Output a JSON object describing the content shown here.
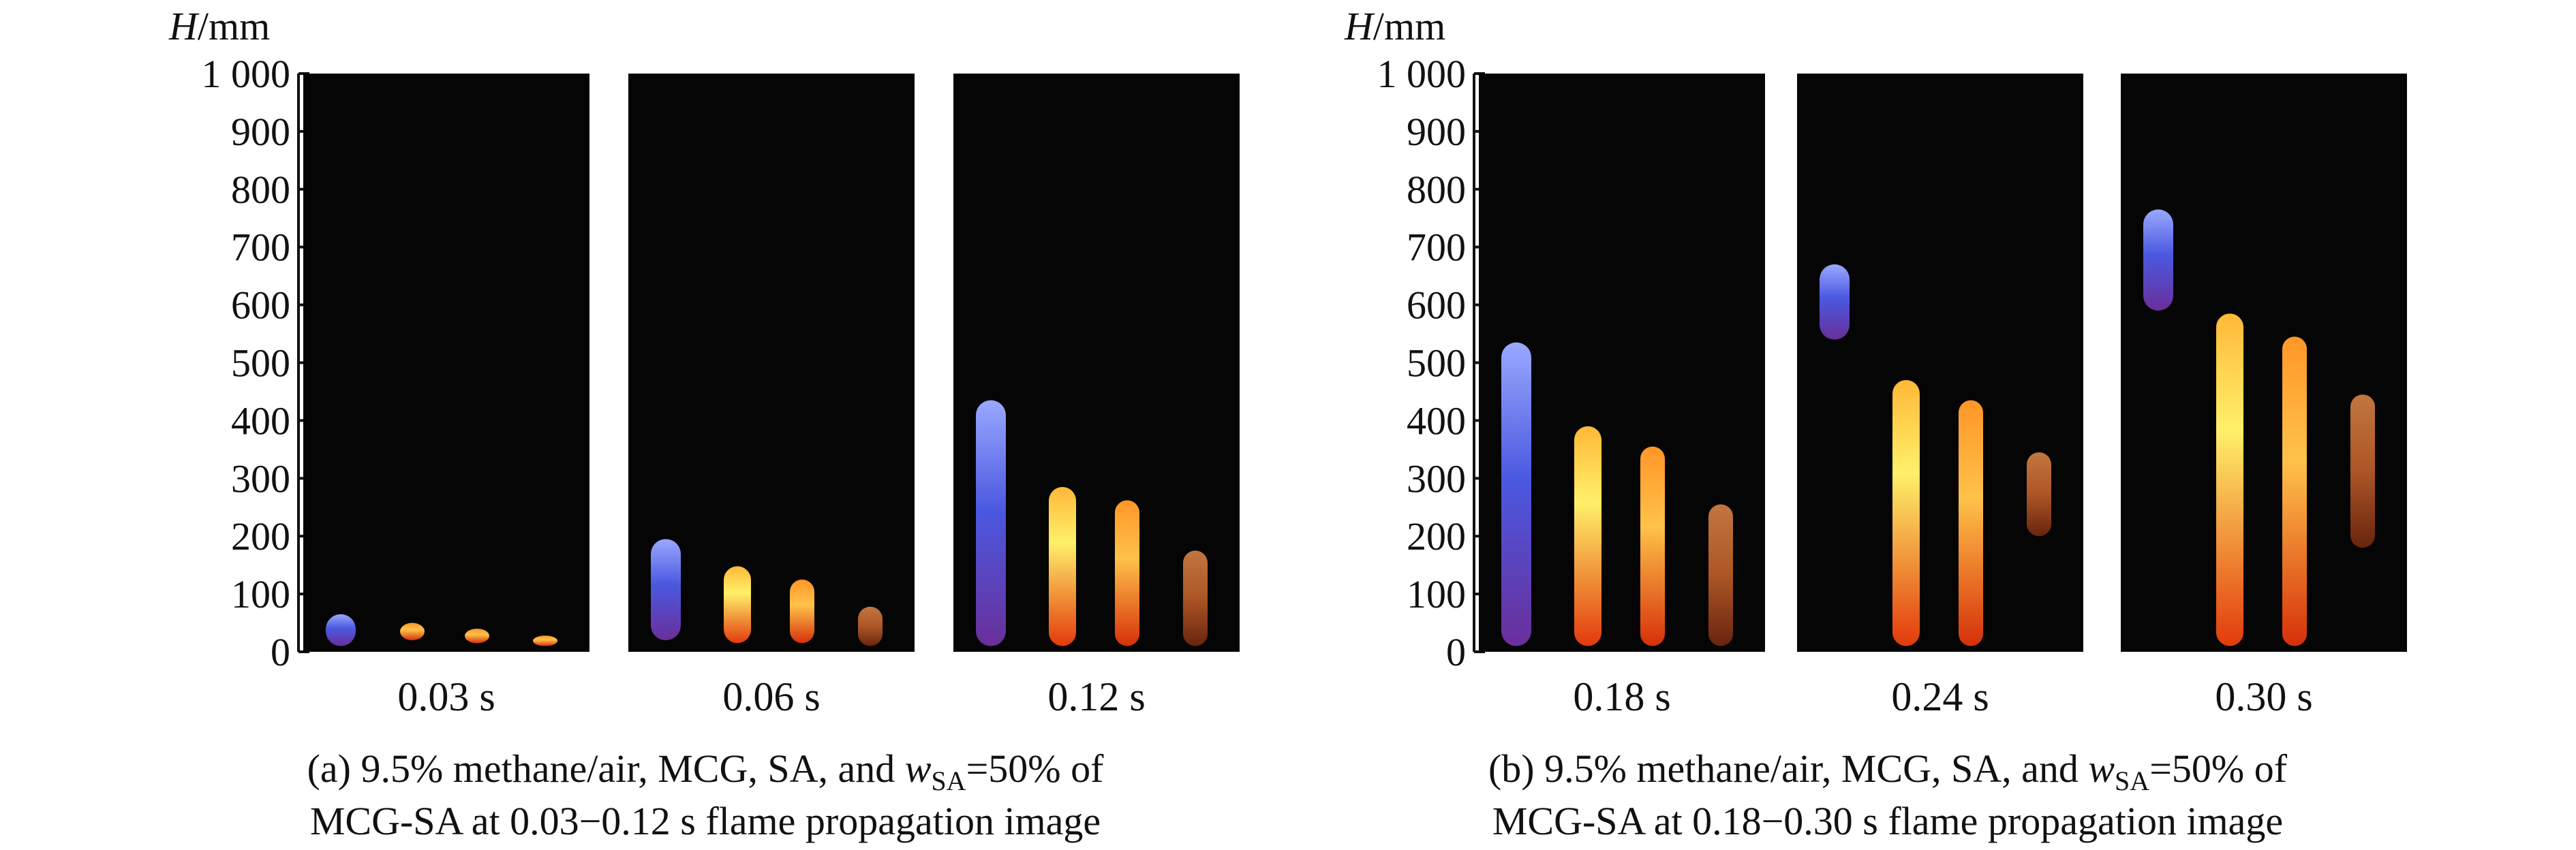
{
  "figure": {
    "axis": {
      "title_var": "H",
      "title_unit": "/mm",
      "ticks": [
        "0",
        "100",
        "200",
        "300",
        "400",
        "500",
        "600",
        "700",
        "800",
        "900",
        "1 000"
      ],
      "range": [
        0,
        1000
      ]
    },
    "panels": [
      {
        "id": "a",
        "frames": [
          {
            "time": "0.03 s",
            "flames": [
              {
                "kind": "blue",
                "top_mm": 65,
                "bottom_mm": 10
              },
              {
                "kind": "orange",
                "top_mm": 50,
                "bottom_mm": 20
              },
              {
                "kind": "orange",
                "top_mm": 40,
                "bottom_mm": 15
              },
              {
                "kind": "orange",
                "top_mm": 28,
                "bottom_mm": 10
              }
            ]
          },
          {
            "time": "0.06 s",
            "flames": [
              {
                "kind": "blue",
                "top_mm": 195,
                "bottom_mm": 20
              },
              {
                "kind": "yellow",
                "top_mm": 148,
                "bottom_mm": 15
              },
              {
                "kind": "orange",
                "top_mm": 125,
                "bottom_mm": 15
              },
              {
                "kind": "dim",
                "top_mm": 78,
                "bottom_mm": 10
              }
            ]
          },
          {
            "time": "0.12 s",
            "flames": [
              {
                "kind": "blue",
                "top_mm": 435,
                "bottom_mm": 10
              },
              {
                "kind": "yellow",
                "top_mm": 285,
                "bottom_mm": 10
              },
              {
                "kind": "orange",
                "top_mm": 262,
                "bottom_mm": 10
              },
              {
                "kind": "dim",
                "top_mm": 175,
                "bottom_mm": 10
              }
            ]
          }
        ],
        "caption_line1_pre": "(a) 9.5% methane/air, MCG, SA, and ",
        "caption_w": "w",
        "caption_sub": "SA",
        "caption_line1_post": "=50% of",
        "caption_line2": "MCG-SA at 0.03−0.12 s flame propagation image"
      },
      {
        "id": "b",
        "frames": [
          {
            "time": "0.18 s",
            "flames": [
              {
                "kind": "blue",
                "top_mm": 535,
                "bottom_mm": 10
              },
              {
                "kind": "yellow",
                "top_mm": 390,
                "bottom_mm": 10
              },
              {
                "kind": "orange",
                "top_mm": 355,
                "bottom_mm": 10
              },
              {
                "kind": "dim",
                "top_mm": 255,
                "bottom_mm": 10
              }
            ]
          },
          {
            "time": "0.24 s",
            "flames": [
              {
                "kind": "blue",
                "top_mm": 670,
                "bottom_mm": 540
              },
              {
                "kind": "yellow",
                "top_mm": 470,
                "bottom_mm": 10
              },
              {
                "kind": "orange",
                "top_mm": 435,
                "bottom_mm": 10
              },
              {
                "kind": "dim",
                "top_mm": 345,
                "bottom_mm": 200
              }
            ]
          },
          {
            "time": "0.30 s",
            "flames": [
              {
                "kind": "blue",
                "top_mm": 765,
                "bottom_mm": 590
              },
              {
                "kind": "yellow",
                "top_mm": 585,
                "bottom_mm": 10
              },
              {
                "kind": "orange",
                "top_mm": 545,
                "bottom_mm": 10
              },
              {
                "kind": "dim",
                "top_mm": 445,
                "bottom_mm": 180
              }
            ]
          }
        ],
        "caption_line1_pre": "(b) 9.5% methane/air, MCG, SA, and ",
        "caption_w": "w",
        "caption_sub": "SA",
        "caption_line1_post": "=50% of",
        "caption_line2": "MCG-SA at 0.18−0.30 s flame propagation image"
      }
    ],
    "colors": {
      "background": "#ffffff",
      "frame": "#050505",
      "blue": "#5a6cf0",
      "yellow": "#ffd640",
      "orange": "#ff8a1e",
      "dim": "#c9723a",
      "axis": "#111111"
    }
  }
}
